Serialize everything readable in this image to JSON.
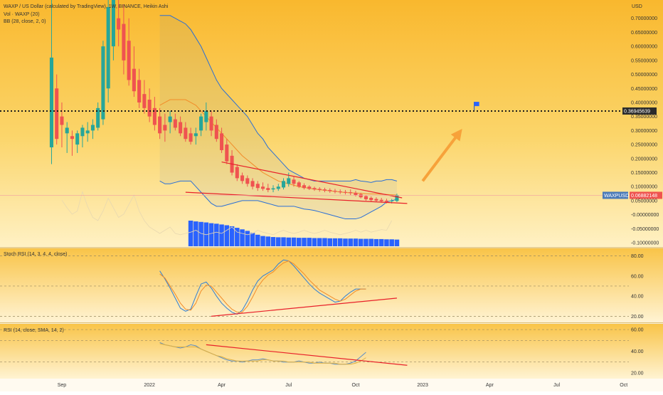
{
  "header": {
    "legend_main": "WAXP / US Dollar (calculated by TradingView), 1W, BINANCE, Heikin Ashi",
    "legend_vol": "Vol · WAXP (20)",
    "legend_bb": "BB (28, close, 2, 0)",
    "currency": "USD"
  },
  "colors": {
    "up": "#26a69a",
    "down": "#ef5350",
    "volume": "#2962ff",
    "bb_band": "#2a6fd6",
    "bb_basis": "#f28c28",
    "trend": "#e8202a",
    "arrow": "#f7a23a",
    "dotted": "#1a1a1a",
    "stoch_k": "#2f7fd6",
    "stoch_d": "#f28c28",
    "rsi": "#5b8fc8",
    "rsi_ma": "#e0b040",
    "flag": "#2962ff"
  },
  "chart_data": [
    {
      "type": "candlestick",
      "name": "WAXPUSD",
      "style": "heikin-ashi",
      "y_axis_ticks": [
        "0.70000000",
        "0.65000000",
        "0.60000000",
        "0.55000000",
        "0.50000000",
        "0.45000000",
        "0.40000000",
        "0.35000000",
        "0.30000000",
        "0.25000000",
        "0.20000000",
        "0.15000000",
        "0.10000000",
        "0.05000000",
        "-0.00000000",
        "-0.05000000",
        "-0.10000000"
      ],
      "ylim": [
        -0.11,
        0.75
      ],
      "x_axis_ticks": [
        "Sep",
        "2022",
        "Apr",
        "Jul",
        "Oct",
        "2023",
        "Apr",
        "Jul",
        "Oct"
      ],
      "x_axis_ticks_at": [
        0,
        17,
        31,
        44,
        57,
        70,
        83,
        96,
        109
      ],
      "x_range": [
        -12,
        110
      ],
      "horizontal_level": 0.36945639,
      "horizontal_level_label": "0.36945639",
      "price_label": "0.06882148",
      "symbol_label": "WAXPUSD",
      "candles": [
        {
          "t": -2,
          "o": 0.24,
          "h": 0.78,
          "l": 0.18,
          "c": 0.56
        },
        {
          "t": -1,
          "o": 0.45,
          "h": 0.5,
          "l": 0.25,
          "c": 0.27
        },
        {
          "t": 0,
          "o": 0.35,
          "h": 0.4,
          "l": 0.24,
          "c": 0.32
        },
        {
          "t": 1,
          "o": 0.29,
          "h": 0.33,
          "l": 0.22,
          "c": 0.31
        },
        {
          "t": 2,
          "o": 0.28,
          "h": 0.3,
          "l": 0.21,
          "c": 0.27
        },
        {
          "t": 3,
          "o": 0.25,
          "h": 0.3,
          "l": 0.22,
          "c": 0.29
        },
        {
          "t": 4,
          "o": 0.28,
          "h": 0.32,
          "l": 0.24,
          "c": 0.31
        },
        {
          "t": 5,
          "o": 0.29,
          "h": 0.33,
          "l": 0.26,
          "c": 0.3
        },
        {
          "t": 6,
          "o": 0.3,
          "h": 0.34,
          "l": 0.27,
          "c": 0.32
        },
        {
          "t": 7,
          "o": 0.31,
          "h": 0.4,
          "l": 0.3,
          "c": 0.38
        },
        {
          "t": 8,
          "o": 0.34,
          "h": 0.62,
          "l": 0.32,
          "c": 0.6
        },
        {
          "t": 9,
          "o": 0.45,
          "h": 0.78,
          "l": 0.4,
          "c": 0.74
        },
        {
          "t": 10,
          "o": 0.6,
          "h": 0.8,
          "l": 0.55,
          "c": 0.78
        },
        {
          "t": 11,
          "o": 0.7,
          "h": 0.8,
          "l": 0.6,
          "c": 0.66
        },
        {
          "t": 12,
          "o": 0.68,
          "h": 0.75,
          "l": 0.5,
          "c": 0.55
        },
        {
          "t": 13,
          "o": 0.62,
          "h": 0.7,
          "l": 0.46,
          "c": 0.48
        },
        {
          "t": 14,
          "o": 0.52,
          "h": 0.6,
          "l": 0.42,
          "c": 0.44
        },
        {
          "t": 15,
          "o": 0.48,
          "h": 0.52,
          "l": 0.38,
          "c": 0.4
        },
        {
          "t": 16,
          "o": 0.43,
          "h": 0.48,
          "l": 0.36,
          "c": 0.38
        },
        {
          "t": 17,
          "o": 0.41,
          "h": 0.45,
          "l": 0.33,
          "c": 0.35
        },
        {
          "t": 18,
          "o": 0.38,
          "h": 0.42,
          "l": 0.3,
          "c": 0.32
        },
        {
          "t": 19,
          "o": 0.35,
          "h": 0.38,
          "l": 0.27,
          "c": 0.29
        },
        {
          "t": 20,
          "o": 0.32,
          "h": 0.36,
          "l": 0.26,
          "c": 0.3
        },
        {
          "t": 21,
          "o": 0.33,
          "h": 0.37,
          "l": 0.29,
          "c": 0.35
        },
        {
          "t": 22,
          "o": 0.34,
          "h": 0.36,
          "l": 0.3,
          "c": 0.31
        },
        {
          "t": 23,
          "o": 0.33,
          "h": 0.35,
          "l": 0.28,
          "c": 0.29
        },
        {
          "t": 24,
          "o": 0.31,
          "h": 0.33,
          "l": 0.26,
          "c": 0.27
        },
        {
          "t": 25,
          "o": 0.29,
          "h": 0.31,
          "l": 0.25,
          "c": 0.26
        },
        {
          "t": 26,
          "o": 0.28,
          "h": 0.31,
          "l": 0.25,
          "c": 0.29
        },
        {
          "t": 27,
          "o": 0.3,
          "h": 0.36,
          "l": 0.28,
          "c": 0.35
        },
        {
          "t": 28,
          "o": 0.33,
          "h": 0.4,
          "l": 0.3,
          "c": 0.37
        },
        {
          "t": 29,
          "o": 0.35,
          "h": 0.37,
          "l": 0.28,
          "c": 0.3
        },
        {
          "t": 30,
          "o": 0.32,
          "h": 0.34,
          "l": 0.26,
          "c": 0.27
        },
        {
          "t": 31,
          "o": 0.29,
          "h": 0.31,
          "l": 0.22,
          "c": 0.23
        },
        {
          "t": 32,
          "o": 0.25,
          "h": 0.27,
          "l": 0.18,
          "c": 0.19
        },
        {
          "t": 33,
          "o": 0.21,
          "h": 0.23,
          "l": 0.14,
          "c": 0.15
        },
        {
          "t": 34,
          "o": 0.17,
          "h": 0.18,
          "l": 0.12,
          "c": 0.13
        },
        {
          "t": 35,
          "o": 0.14,
          "h": 0.15,
          "l": 0.11,
          "c": 0.12
        },
        {
          "t": 36,
          "o": 0.13,
          "h": 0.14,
          "l": 0.1,
          "c": 0.11
        },
        {
          "t": 37,
          "o": 0.12,
          "h": 0.13,
          "l": 0.09,
          "c": 0.1
        },
        {
          "t": 38,
          "o": 0.11,
          "h": 0.12,
          "l": 0.085,
          "c": 0.095
        },
        {
          "t": 39,
          "o": 0.1,
          "h": 0.115,
          "l": 0.085,
          "c": 0.092
        },
        {
          "t": 40,
          "o": 0.095,
          "h": 0.11,
          "l": 0.08,
          "c": 0.088
        },
        {
          "t": 41,
          "o": 0.09,
          "h": 0.105,
          "l": 0.08,
          "c": 0.094
        },
        {
          "t": 42,
          "o": 0.092,
          "h": 0.11,
          "l": 0.085,
          "c": 0.1
        },
        {
          "t": 43,
          "o": 0.097,
          "h": 0.13,
          "l": 0.09,
          "c": 0.12
        },
        {
          "t": 44,
          "o": 0.11,
          "h": 0.15,
          "l": 0.1,
          "c": 0.13
        },
        {
          "t": 45,
          "o": 0.125,
          "h": 0.135,
          "l": 0.1,
          "c": 0.11
        },
        {
          "t": 46,
          "o": 0.115,
          "h": 0.12,
          "l": 0.095,
          "c": 0.1
        },
        {
          "t": 47,
          "o": 0.105,
          "h": 0.112,
          "l": 0.09,
          "c": 0.095
        },
        {
          "t": 48,
          "o": 0.1,
          "h": 0.105,
          "l": 0.088,
          "c": 0.092
        },
        {
          "t": 49,
          "o": 0.095,
          "h": 0.1,
          "l": 0.085,
          "c": 0.09
        },
        {
          "t": 50,
          "o": 0.092,
          "h": 0.098,
          "l": 0.082,
          "c": 0.088
        },
        {
          "t": 51,
          "o": 0.09,
          "h": 0.096,
          "l": 0.08,
          "c": 0.086
        },
        {
          "t": 52,
          "o": 0.088,
          "h": 0.094,
          "l": 0.078,
          "c": 0.084
        },
        {
          "t": 53,
          "o": 0.085,
          "h": 0.092,
          "l": 0.076,
          "c": 0.082
        },
        {
          "t": 54,
          "o": 0.083,
          "h": 0.09,
          "l": 0.074,
          "c": 0.08
        },
        {
          "t": 55,
          "o": 0.081,
          "h": 0.088,
          "l": 0.072,
          "c": 0.079
        },
        {
          "t": 56,
          "o": 0.08,
          "h": 0.09,
          "l": 0.07,
          "c": 0.077
        },
        {
          "t": 57,
          "o": 0.078,
          "h": 0.085,
          "l": 0.065,
          "c": 0.07
        },
        {
          "t": 58,
          "o": 0.073,
          "h": 0.078,
          "l": 0.058,
          "c": 0.062
        },
        {
          "t": 59,
          "o": 0.066,
          "h": 0.07,
          "l": 0.05,
          "c": 0.055
        },
        {
          "t": 60,
          "o": 0.06,
          "h": 0.065,
          "l": 0.047,
          "c": 0.052
        },
        {
          "t": 61,
          "o": 0.056,
          "h": 0.062,
          "l": 0.045,
          "c": 0.05
        },
        {
          "t": 62,
          "o": 0.053,
          "h": 0.06,
          "l": 0.043,
          "c": 0.048
        },
        {
          "t": 63,
          "o": 0.05,
          "h": 0.057,
          "l": 0.04,
          "c": 0.046
        },
        {
          "t": 64,
          "o": 0.048,
          "h": 0.056,
          "l": 0.04,
          "c": 0.05
        },
        {
          "t": 65,
          "o": 0.049,
          "h": 0.075,
          "l": 0.045,
          "c": 0.069
        }
      ],
      "bollinger": {
        "x_start": 19,
        "upper": [
          0.71,
          0.71,
          0.71,
          0.7,
          0.69,
          0.68,
          0.66,
          0.63,
          0.6,
          0.56,
          0.52,
          0.48,
          0.45,
          0.43,
          0.41,
          0.39,
          0.37,
          0.35,
          0.32,
          0.29,
          0.27,
          0.24,
          0.22,
          0.2,
          0.18,
          0.16,
          0.15,
          0.14,
          0.13,
          0.125,
          0.12,
          0.12,
          0.12,
          0.12,
          0.12,
          0.12,
          0.12,
          0.12,
          0.125,
          0.12,
          0.118,
          0.115,
          0.12,
          0.12,
          0.125,
          0.125,
          0.12
        ],
        "basis": [
          0.39,
          0.4,
          0.41,
          0.41,
          0.41,
          0.41,
          0.4,
          0.39,
          0.37,
          0.35,
          0.33,
          0.31,
          0.29,
          0.27,
          0.25,
          0.23,
          0.21,
          0.195,
          0.18,
          0.165,
          0.15,
          0.14,
          0.13,
          0.12,
          0.115,
          0.11,
          0.105,
          0.1,
          0.097,
          0.094,
          0.091,
          0.089,
          0.087,
          0.085,
          0.083,
          0.081,
          0.079,
          0.078,
          0.077,
          0.076,
          0.075,
          0.074,
          0.074,
          0.073,
          0.072,
          0.071,
          0.07
        ],
        "lower": [
          0.12,
          0.11,
          0.11,
          0.115,
          0.12,
          0.12,
          0.12,
          0.1,
          0.08,
          0.06,
          0.04,
          0.03,
          0.03,
          0.035,
          0.04,
          0.045,
          0.05,
          0.05,
          0.05,
          0.05,
          0.045,
          0.04,
          0.035,
          0.03,
          0.03,
          0.03,
          0.03,
          0.025,
          0.02,
          0.018,
          0.015,
          0.01,
          0.005,
          0.0,
          -0.005,
          -0.01,
          -0.015,
          -0.015,
          -0.015,
          -0.01,
          0.0,
          0.01,
          0.02,
          0.03,
          0.045,
          0.05,
          0.055
        ]
      },
      "trend_lines": [
        {
          "from": [
            31,
            0.188
          ],
          "to": [
            66,
            0.06
          ]
        },
        {
          "from": [
            24,
            0.08
          ],
          "to": [
            67,
            0.04
          ]
        }
      ],
      "arrow": {
        "from": [
          70,
          0.12
        ],
        "to": [
          77,
          0.29
        ]
      },
      "volume": {
        "x_start": 25,
        "values": [
          1.0,
          0.97,
          0.95,
          0.93,
          0.9,
          0.88,
          0.85,
          0.82,
          0.78,
          0.72,
          0.66,
          0.6,
          0.52,
          0.45,
          0.4,
          0.38,
          0.36,
          0.35,
          0.35,
          0.34,
          0.34,
          0.33,
          0.33,
          0.33,
          0.32,
          0.32,
          0.32,
          0.31,
          0.31,
          0.31,
          0.3,
          0.3,
          0.3,
          0.29,
          0.29,
          0.29,
          0.28,
          0.28,
          0.27,
          0.27,
          0.26
        ]
      },
      "volume_ma": [
        0.72,
        0.6,
        0.5,
        0.55,
        0.85,
        0.62,
        0.45,
        0.4,
        0.55,
        0.75,
        0.6,
        0.45,
        0.5,
        0.65,
        0.8,
        0.55,
        0.4,
        0.3,
        0.25,
        0.2,
        0.25,
        0.3,
        0.2,
        0.18,
        0.2,
        0.22,
        0.25,
        0.2,
        0.18,
        0.2,
        0.22,
        0.2,
        0.25,
        0.3,
        0.22,
        0.2,
        0.18,
        0.2,
        0.25,
        0.22,
        0.2,
        0.18,
        0.22,
        0.25,
        0.22,
        0.2,
        0.22,
        0.25,
        0.22,
        0.2,
        0.22,
        0.25,
        0.22,
        0.2,
        0.18,
        0.2,
        0.22,
        0.25,
        0.22,
        0.25,
        0.22,
        0.24,
        0.26,
        0.25,
        0.4
      ],
      "volume_ma_x_start": 0,
      "flag": {
        "x": 80,
        "y": 0.387
      }
    },
    {
      "type": "line",
      "name": "Stoch RSI",
      "legend": "Stoch RSI (14, 3, 4, 4, close)",
      "y_axis_ticks": [
        "80.00",
        "60.00",
        "40.00",
        "20.00"
      ],
      "ylim": [
        16,
        86
      ],
      "levels": [
        80,
        50,
        20
      ],
      "x_start": 19,
      "k": [
        65,
        57,
        48,
        38,
        28,
        25,
        27,
        40,
        52,
        54,
        48,
        40,
        33,
        28,
        24,
        22,
        26,
        35,
        46,
        55,
        60,
        63,
        66,
        72,
        76,
        75,
        70,
        64,
        58,
        52,
        47,
        43,
        40,
        37,
        34,
        35,
        40,
        44,
        47,
        47,
        47
      ],
      "d": [
        62,
        58,
        50,
        42,
        33,
        27,
        26,
        33,
        45,
        51,
        50,
        44,
        38,
        32,
        27,
        24,
        24,
        30,
        39,
        49,
        56,
        61,
        64,
        69,
        73,
        75,
        72,
        67,
        62,
        56,
        51,
        46,
        43,
        40,
        37,
        35,
        37,
        41,
        45,
        47,
        47
      ],
      "trend_line": {
        "from": [
          29,
          20
        ],
        "to": [
          65,
          38
        ]
      }
    },
    {
      "type": "line",
      "name": "RSI",
      "legend": "RSI (14, close, SMA, 14, 2)",
      "y_axis_ticks": [
        "60.00",
        "40.00",
        "20.00"
      ],
      "ylim": [
        16,
        64
      ],
      "levels": [
        60,
        50,
        30
      ],
      "x_start": 19,
      "rsi": [
        48,
        46,
        45,
        44,
        43,
        44,
        46,
        45,
        42,
        40,
        38,
        36,
        34,
        32,
        31,
        31,
        30,
        31,
        32,
        32,
        33,
        32,
        31,
        31,
        30,
        30,
        30,
        31,
        30,
        29,
        29,
        30,
        29,
        29,
        28,
        28,
        28,
        29,
        31,
        35,
        39
      ],
      "ma": [
        47,
        46,
        45,
        44,
        44,
        44,
        44,
        44,
        42,
        40,
        38,
        36,
        35,
        33,
        32,
        31,
        31,
        31,
        31,
        31,
        32,
        32,
        31,
        31,
        31,
        30,
        30,
        30,
        30,
        30,
        29,
        29,
        29,
        29,
        29,
        28,
        28,
        28,
        29,
        31,
        34
      ],
      "trend_line": {
        "from": [
          28,
          46
        ],
        "to": [
          67,
          27
        ]
      }
    }
  ]
}
